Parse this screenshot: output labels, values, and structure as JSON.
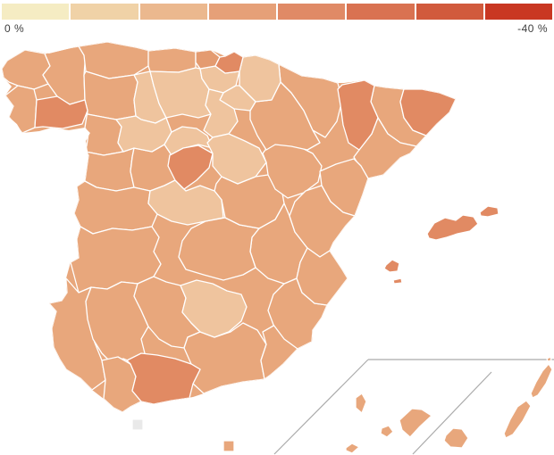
{
  "legend": {
    "left_label": "0 %",
    "right_label": "-40 %",
    "swatches": [
      "#F5ECC3",
      "#F0D2A7",
      "#EBB88E",
      "#E6A078",
      "#E08A66",
      "#D97251",
      "#D15A3C",
      "#C93722"
    ]
  },
  "map": {
    "tones": {
      "light": "#EFC49E",
      "medium": "#E8A77C",
      "medium_dark": "#E49B70",
      "dark": "#E18A63",
      "no_data": "#E9E9E9"
    },
    "border_color": "#FFFFFF",
    "inset_line_color": "#ABABAB",
    "regions": [
      {
        "id": "a-coruna",
        "tone": "medium",
        "group": "peninsula"
      },
      {
        "id": "lugo",
        "tone": "medium",
        "group": "peninsula"
      },
      {
        "id": "pontevedra",
        "tone": "medium",
        "group": "peninsula"
      },
      {
        "id": "asturias",
        "tone": "medium",
        "group": "peninsula"
      },
      {
        "id": "leon",
        "tone": "medium",
        "group": "peninsula"
      },
      {
        "id": "cantabria",
        "tone": "medium",
        "group": "peninsula"
      },
      {
        "id": "zamora",
        "tone": "medium",
        "group": "peninsula"
      },
      {
        "id": "salamanca",
        "tone": "medium",
        "group": "peninsula"
      },
      {
        "id": "avila",
        "tone": "medium",
        "group": "peninsula"
      },
      {
        "id": "caceres",
        "tone": "medium",
        "group": "peninsula"
      },
      {
        "id": "badajoz",
        "tone": "medium",
        "group": "peninsula"
      },
      {
        "id": "huelva",
        "tone": "medium",
        "group": "peninsula"
      },
      {
        "id": "sevilla",
        "tone": "medium",
        "group": "peninsula"
      },
      {
        "id": "cadiz",
        "tone": "medium",
        "group": "peninsula"
      },
      {
        "id": "cordoba",
        "tone": "medium",
        "group": "peninsula"
      },
      {
        "id": "granada",
        "tone": "medium",
        "group": "peninsula"
      },
      {
        "id": "almeria",
        "tone": "medium",
        "group": "peninsula"
      },
      {
        "id": "murcia",
        "tone": "medium",
        "group": "peninsula"
      },
      {
        "id": "albacete",
        "tone": "medium",
        "group": "peninsula"
      },
      {
        "id": "ciudad-real",
        "tone": "medium",
        "group": "peninsula"
      },
      {
        "id": "cuenca",
        "tone": "medium",
        "group": "peninsula"
      },
      {
        "id": "teruel",
        "tone": "medium",
        "group": "peninsula"
      },
      {
        "id": "zaragoza",
        "tone": "medium",
        "group": "peninsula"
      },
      {
        "id": "huesca",
        "tone": "medium",
        "group": "peninsula"
      },
      {
        "id": "barcelona",
        "tone": "medium",
        "group": "peninsula"
      },
      {
        "id": "tarragona",
        "tone": "medium",
        "group": "peninsula"
      },
      {
        "id": "castellon",
        "tone": "medium",
        "group": "peninsula"
      },
      {
        "id": "valencia",
        "tone": "medium",
        "group": "peninsula"
      },
      {
        "id": "alicante",
        "tone": "medium",
        "group": "peninsula"
      },
      {
        "id": "palencia",
        "tone": "light",
        "group": "peninsula"
      },
      {
        "id": "burgos",
        "tone": "light",
        "group": "peninsula"
      },
      {
        "id": "alava",
        "tone": "light",
        "group": "peninsula"
      },
      {
        "id": "navarra",
        "tone": "light",
        "group": "peninsula"
      },
      {
        "id": "la-rioja",
        "tone": "light",
        "group": "peninsula"
      },
      {
        "id": "soria",
        "tone": "light",
        "group": "peninsula"
      },
      {
        "id": "valladolid",
        "tone": "light",
        "group": "peninsula"
      },
      {
        "id": "segovia",
        "tone": "light",
        "group": "peninsula"
      },
      {
        "id": "guadalajara",
        "tone": "light",
        "group": "peninsula"
      },
      {
        "id": "toledo",
        "tone": "light",
        "group": "peninsula"
      },
      {
        "id": "jaen",
        "tone": "light",
        "group": "peninsula"
      },
      {
        "id": "vizcaya",
        "tone": "medium_dark",
        "group": "peninsula"
      },
      {
        "id": "gipuzkoa",
        "tone": "dark",
        "group": "peninsula"
      },
      {
        "id": "ourense",
        "tone": "dark",
        "group": "peninsula"
      },
      {
        "id": "madrid",
        "tone": "dark",
        "group": "peninsula"
      },
      {
        "id": "lleida",
        "tone": "dark",
        "group": "peninsula"
      },
      {
        "id": "girona",
        "tone": "dark",
        "group": "peninsula"
      },
      {
        "id": "malaga",
        "tone": "dark",
        "group": "peninsula"
      },
      {
        "id": "mallorca",
        "tone": "dark",
        "group": "island"
      },
      {
        "id": "menorca",
        "tone": "dark",
        "group": "island"
      },
      {
        "id": "ibiza",
        "tone": "dark",
        "group": "island"
      },
      {
        "id": "formentera",
        "tone": "dark",
        "group": "island"
      },
      {
        "id": "la-palma",
        "tone": "medium",
        "group": "island"
      },
      {
        "id": "el-hierro",
        "tone": "medium",
        "group": "island"
      },
      {
        "id": "la-gomera",
        "tone": "medium",
        "group": "island"
      },
      {
        "id": "tenerife",
        "tone": "medium",
        "group": "island"
      },
      {
        "id": "gran-canaria",
        "tone": "medium",
        "group": "island"
      },
      {
        "id": "fuerteventura",
        "tone": "medium",
        "group": "island"
      },
      {
        "id": "lanzarote",
        "tone": "medium",
        "group": "island"
      },
      {
        "id": "la-graciosa",
        "tone": "medium",
        "group": "island"
      },
      {
        "id": "ceuta",
        "tone": "no_data",
        "group": "island"
      },
      {
        "id": "melilla",
        "tone": "medium",
        "group": "island"
      }
    ]
  }
}
